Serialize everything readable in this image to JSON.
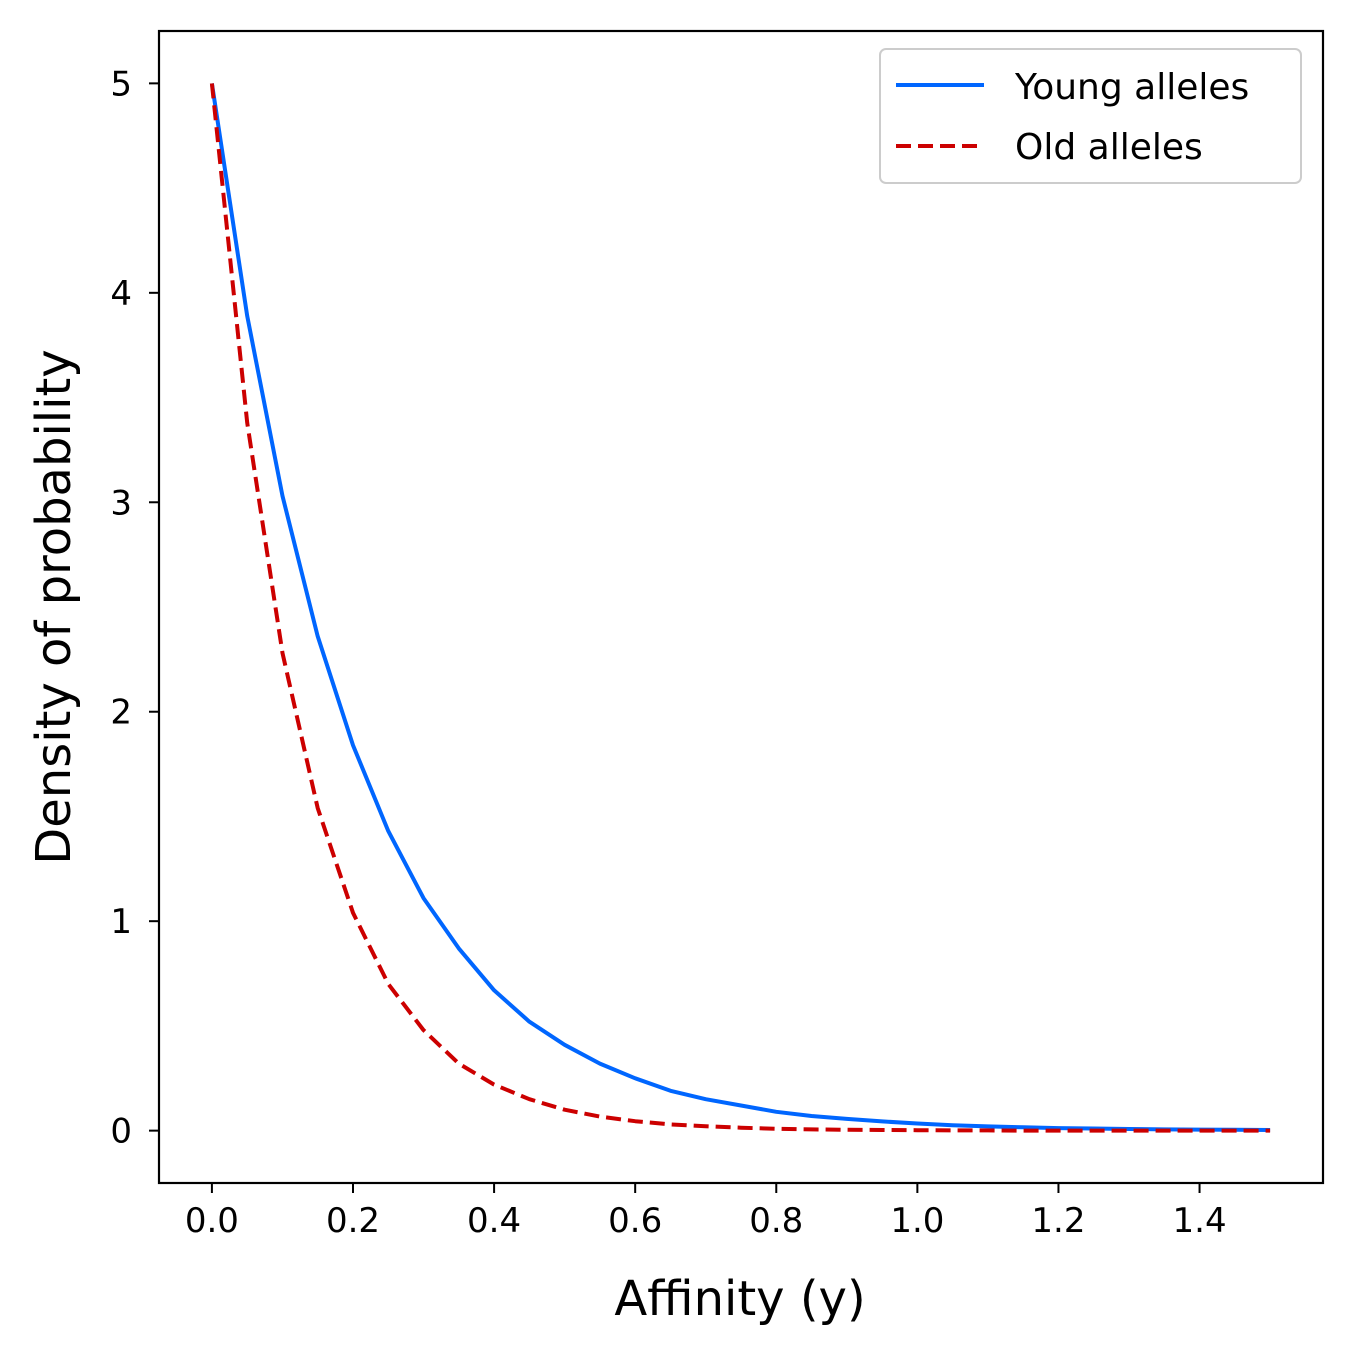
{
  "chart_data": {
    "type": "line",
    "title": "",
    "xlabel": "Affinity (y)",
    "ylabel": "Density of probability",
    "xlim": [
      -0.075,
      1.575
    ],
    "ylim": [
      -0.25,
      5.25
    ],
    "xticks": [
      0.0,
      0.2,
      0.4,
      0.6,
      0.8,
      1.0,
      1.2,
      1.4
    ],
    "xtick_labels": [
      "0.0",
      "0.2",
      "0.4",
      "0.6",
      "0.8",
      "1.0",
      "1.2",
      "1.4"
    ],
    "yticks": [
      0,
      1,
      2,
      3,
      4,
      5
    ],
    "ytick_labels": [
      "0",
      "1",
      "2",
      "3",
      "4",
      "5"
    ],
    "grid": false,
    "legend_position": "top-right",
    "series": [
      {
        "name": "Young alleles",
        "color": "#0066ff",
        "style": "solid",
        "x": [
          0.0,
          0.05,
          0.1,
          0.15,
          0.2,
          0.25,
          0.3,
          0.35,
          0.4,
          0.45,
          0.5,
          0.55,
          0.6,
          0.65,
          0.7,
          0.75,
          0.8,
          0.85,
          0.9,
          0.95,
          1.0,
          1.05,
          1.1,
          1.15,
          1.2,
          1.25,
          1.3,
          1.35,
          1.4,
          1.45,
          1.5
        ],
        "y": [
          5.0,
          3.89,
          3.03,
          2.36,
          1.84,
          1.43,
          1.11,
          0.87,
          0.67,
          0.52,
          0.41,
          0.32,
          0.25,
          0.19,
          0.15,
          0.12,
          0.09,
          0.07,
          0.056,
          0.044,
          0.034,
          0.026,
          0.02,
          0.016,
          0.012,
          0.01,
          0.008,
          0.006,
          0.005,
          0.004,
          0.003
        ]
      },
      {
        "name": "Old alleles",
        "color": "#cc0000",
        "style": "dashed",
        "x": [
          0.0,
          0.05,
          0.1,
          0.15,
          0.2,
          0.25,
          0.3,
          0.35,
          0.4,
          0.45,
          0.5,
          0.55,
          0.6,
          0.65,
          0.7,
          0.75,
          0.8,
          0.85,
          0.9,
          0.95,
          1.0,
          1.05,
          1.1,
          1.15,
          1.2,
          1.25,
          1.3,
          1.35,
          1.4,
          1.45,
          1.5
        ],
        "y": [
          5.0,
          3.38,
          2.28,
          1.54,
          1.04,
          0.7,
          0.48,
          0.32,
          0.22,
          0.15,
          0.1,
          0.067,
          0.045,
          0.03,
          0.021,
          0.014,
          0.009,
          0.006,
          0.004,
          0.003,
          0.002,
          0.001,
          0.001,
          0.0,
          0.0,
          0.0,
          0.0,
          0.0,
          0.0,
          0.0,
          0.0
        ]
      }
    ]
  }
}
